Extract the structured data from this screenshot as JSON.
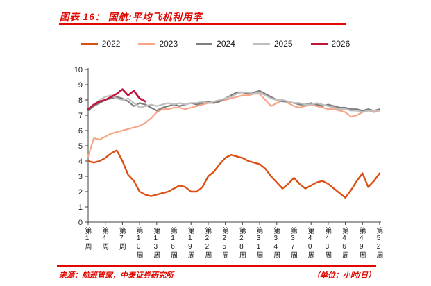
{
  "header": {
    "title": "图表 16：  国航:平均飞机利用率"
  },
  "footer": {
    "source": "来源：航班管家，中泰证券研究所",
    "unit": "（单位：小时/日）"
  },
  "colors": {
    "accent_red": "#e10600",
    "axis": "#404040",
    "tick_text": "#1a1a1a"
  },
  "chart_data": {
    "type": "line",
    "title": "国航:平均飞机利用率",
    "unit": "小时/日",
    "grid": false,
    "legend_position": "top",
    "ylim": [
      0,
      10
    ],
    "y_ticks": [
      0,
      1,
      2,
      3,
      4,
      5,
      6,
      7,
      8,
      9,
      10
    ],
    "x_range_weeks": [
      1,
      52
    ],
    "x_tick_weeks": [
      1,
      4,
      7,
      10,
      13,
      16,
      19,
      22,
      25,
      28,
      31,
      34,
      37,
      40,
      43,
      46,
      49,
      52
    ],
    "x_tick_labels": [
      "第1周",
      "第4周",
      "第7周",
      "第10周",
      "第13周",
      "第16周",
      "第19周",
      "第22周",
      "第25周",
      "第28周",
      "第31周",
      "第34周",
      "第37周",
      "第40周",
      "第43周",
      "第46周",
      "第49周",
      "第52周"
    ],
    "series": [
      {
        "name": "2022",
        "color": "#dc4e12",
        "width": 2.4,
        "start_week": 1,
        "values": [
          4.0,
          3.9,
          4.0,
          4.2,
          4.5,
          4.7,
          4.0,
          3.1,
          2.7,
          2.0,
          1.8,
          1.7,
          1.8,
          1.9,
          2.0,
          2.2,
          2.4,
          2.3,
          2.0,
          2.0,
          2.3,
          3.0,
          3.3,
          3.8,
          4.2,
          4.4,
          4.3,
          4.2,
          4.0,
          3.9,
          3.8,
          3.5,
          3.0,
          2.6,
          2.2,
          2.5,
          2.9,
          2.5,
          2.2,
          2.4,
          2.6,
          2.7,
          2.5,
          2.2,
          1.9,
          1.6,
          2.1,
          2.7,
          3.2,
          2.3,
          2.7,
          3.2
        ]
      },
      {
        "name": "2023",
        "color": "#f7a586",
        "width": 2.2,
        "start_week": 1,
        "values": [
          4.3,
          5.5,
          5.4,
          5.6,
          5.8,
          5.9,
          6.0,
          6.1,
          6.2,
          6.3,
          6.5,
          6.8,
          7.2,
          7.4,
          7.4,
          7.5,
          7.5,
          7.4,
          7.5,
          7.6,
          7.7,
          7.8,
          7.8,
          7.9,
          8.0,
          8.1,
          8.2,
          8.3,
          8.3,
          8.4,
          8.4,
          8.0,
          7.6,
          7.8,
          8.0,
          7.8,
          7.6,
          7.5,
          7.6,
          7.7,
          7.6,
          7.5,
          7.4,
          7.4,
          7.3,
          7.2,
          6.9,
          7.0,
          7.2,
          7.3,
          7.2,
          7.3
        ]
      },
      {
        "name": "2024",
        "color": "#7f7f7f",
        "width": 2.2,
        "start_week": 1,
        "values": [
          7.3,
          7.6,
          7.8,
          8.0,
          8.1,
          8.2,
          8.1,
          7.9,
          7.6,
          7.8,
          7.7,
          7.5,
          7.3,
          7.5,
          7.6,
          7.7,
          7.6,
          7.7,
          7.8,
          7.7,
          7.8,
          7.9,
          7.8,
          7.9,
          8.1,
          8.3,
          8.5,
          8.5,
          8.4,
          8.5,
          8.6,
          8.4,
          8.2,
          8.0,
          7.9,
          7.9,
          7.8,
          7.7,
          7.7,
          7.8,
          7.7,
          7.6,
          7.7,
          7.6,
          7.5,
          7.5,
          7.4,
          7.4,
          7.3,
          7.4,
          7.3,
          7.4
        ]
      },
      {
        "name": "2025",
        "color": "#bfbfbf",
        "width": 2.2,
        "start_week": 1,
        "values": [
          7.4,
          7.7,
          8.0,
          8.2,
          8.3,
          8.1,
          8.0,
          8.1,
          7.8,
          7.5,
          7.6,
          7.7,
          7.6,
          7.7,
          7.8,
          7.7,
          7.8,
          7.7,
          7.8,
          7.8,
          7.9,
          7.8,
          7.9,
          8.0,
          8.1,
          8.2,
          8.4,
          8.5,
          8.5,
          8.4,
          8.5,
          8.3,
          8.1,
          8.0,
          8.0,
          7.9,
          7.8,
          7.8,
          7.7,
          7.7,
          7.8,
          7.7,
          7.6,
          7.5,
          7.4,
          7.4,
          7.3,
          7.3,
          7.2,
          7.3,
          7.3,
          7.3
        ]
      },
      {
        "name": "2026",
        "color": "#c0143c",
        "width": 2.6,
        "start_week": 1,
        "values": [
          7.4,
          7.7,
          7.9,
          8.0,
          8.2,
          8.4,
          8.7,
          8.3,
          8.6,
          8.1,
          7.9
        ]
      }
    ]
  }
}
